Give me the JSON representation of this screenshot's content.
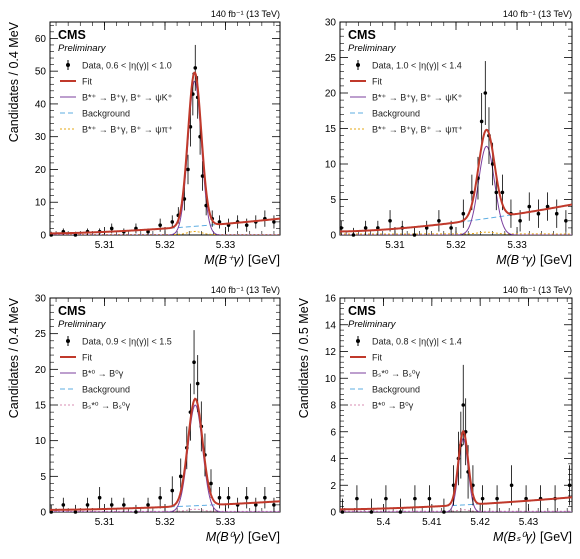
{
  "figure": {
    "lumi_label": "140 fb⁻¹ (13 TeV)"
  },
  "chart_data": [
    {
      "type": "line",
      "experiment": "CMS",
      "status": "Preliminary",
      "xlabel_main": "M(B⁺γ)",
      "xlabel_unit": "[GeV]",
      "ylabel": "Candidates / 0.4 MeV",
      "xlim": [
        5.301,
        5.339
      ],
      "ylim": [
        0,
        65
      ],
      "xticks": [
        5.31,
        5.32,
        5.33
      ],
      "yticks": [
        0,
        10,
        20,
        30,
        40,
        50,
        60
      ],
      "grid": false,
      "legend_position": "top-left",
      "legend": [
        {
          "label": "Data, 0.6 < |η(γ)| < 1.0",
          "kind": "data",
          "color": "#000000"
        },
        {
          "label": "Fit",
          "kind": "line",
          "color": "#c0392b"
        },
        {
          "label": "B*⁺ → B⁺γ, B⁺ → ψK⁺",
          "kind": "line",
          "color": "#7b3f9e"
        },
        {
          "label": "Background",
          "kind": "dashed",
          "color": "#5dade2"
        },
        {
          "label": "B*⁺ → B⁺γ, B⁺ → ψπ⁺",
          "kind": "dotted",
          "color": "#e6a817"
        }
      ],
      "fit": {
        "peak": 5.3249,
        "sigma": 0.0011,
        "amplitude": 47,
        "bkg_start": 0.5,
        "bkg_end": 5
      },
      "data_points": {
        "x": [
          5.3012,
          5.3032,
          5.3052,
          5.3072,
          5.3092,
          5.3112,
          5.3132,
          5.3152,
          5.3172,
          5.3192,
          5.3212,
          5.3222,
          5.3232,
          5.3238,
          5.3242,
          5.3246,
          5.325,
          5.3254,
          5.3258,
          5.3262,
          5.3268,
          5.3278,
          5.329,
          5.3305,
          5.332,
          5.3335,
          5.335,
          5.3365,
          5.338
        ],
        "y": [
          0,
          1,
          0,
          1,
          1,
          2,
          1,
          2,
          1,
          3,
          4,
          6,
          11,
          20,
          33,
          43,
          51,
          42,
          30,
          18,
          9,
          5,
          4,
          3,
          4,
          3,
          4,
          5,
          4
        ],
        "yerr": [
          1,
          1,
          1,
          1,
          1,
          1.5,
          1,
          1.5,
          1,
          2,
          2,
          2.5,
          3.5,
          4.5,
          6,
          6.5,
          7,
          6.5,
          5.5,
          4.5,
          3,
          2.5,
          2,
          2,
          2,
          2,
          2,
          2.5,
          2
        ]
      }
    },
    {
      "type": "line",
      "experiment": "CMS",
      "status": "Preliminary",
      "xlabel_main": "M(B⁺γ)",
      "xlabel_unit": "[GeV]",
      "ylabel": "",
      "xlim": [
        5.301,
        5.339
      ],
      "ylim": [
        0,
        30
      ],
      "xticks": [
        5.31,
        5.32,
        5.33
      ],
      "yticks": [
        0,
        5,
        10,
        15,
        20,
        25,
        30
      ],
      "grid": false,
      "legend_position": "top-left",
      "legend": [
        {
          "label": "Data, 1.0 < |η(γ)| < 1.4",
          "kind": "data",
          "color": "#000000"
        },
        {
          "label": "Fit",
          "kind": "line",
          "color": "#c0392b"
        },
        {
          "label": "B*⁺ → B⁺γ, B⁺ → ψK⁺",
          "kind": "line",
          "color": "#7b3f9e"
        },
        {
          "label": "Background",
          "kind": "dashed",
          "color": "#5dade2"
        },
        {
          "label": "B*⁺ → B⁺γ, B⁺ → ψπ⁺",
          "kind": "dotted",
          "color": "#e6a817"
        }
      ],
      "fit": {
        "peak": 5.325,
        "sigma": 0.0013,
        "amplitude": 12.5,
        "bkg_start": 0.5,
        "bkg_end": 4.3
      },
      "data_points": {
        "x": [
          5.3012,
          5.3032,
          5.3052,
          5.3072,
          5.3092,
          5.3112,
          5.3132,
          5.3152,
          5.3172,
          5.3192,
          5.3212,
          5.3226,
          5.3236,
          5.3242,
          5.3248,
          5.3254,
          5.326,
          5.3266,
          5.3276,
          5.329,
          5.3305,
          5.332,
          5.3335,
          5.335,
          5.3365,
          5.338
        ],
        "y": [
          1,
          0,
          1,
          1,
          2,
          1,
          0,
          1,
          2,
          1,
          3,
          6,
          8,
          16,
          20,
          14,
          10,
          6,
          6,
          3,
          2,
          4,
          3,
          4,
          3,
          2
        ],
        "yerr": [
          1,
          1,
          1,
          1,
          1.5,
          1,
          1,
          1,
          1.5,
          1,
          2,
          2.5,
          3,
          4,
          4.5,
          4,
          3,
          2.5,
          2.5,
          2,
          1.5,
          2,
          2,
          2,
          2,
          1.5
        ]
      }
    },
    {
      "type": "line",
      "experiment": "CMS",
      "status": "Preliminary",
      "xlabel_main": "M(B⁰γ)",
      "xlabel_unit": "[GeV]",
      "ylabel": "Candidates / 0.4 MeV",
      "xlim": [
        5.301,
        5.339
      ],
      "ylim": [
        0,
        30
      ],
      "xticks": [
        5.31,
        5.32,
        5.33
      ],
      "yticks": [
        0,
        5,
        10,
        15,
        20,
        25,
        30
      ],
      "grid": false,
      "legend_position": "top-left",
      "legend": [
        {
          "label": "Data, 0.9 < |η(γ)| < 1.5",
          "kind": "data",
          "color": "#000000"
        },
        {
          "label": "Fit",
          "kind": "line",
          "color": "#c0392b"
        },
        {
          "label": "B*⁰ → B⁰γ",
          "kind": "line",
          "color": "#7b3f9e"
        },
        {
          "label": "Background",
          "kind": "dashed",
          "color": "#5dade2"
        },
        {
          "label": "Bₛ*⁰ → Bₛ⁰γ",
          "kind": "dotted",
          "color": "#d98cb3"
        }
      ],
      "fit": {
        "peak": 5.325,
        "sigma": 0.0012,
        "amplitude": 15,
        "bkg_start": 0.3,
        "bkg_end": 1.5
      },
      "data_points": {
        "x": [
          5.3012,
          5.3032,
          5.3052,
          5.3072,
          5.3092,
          5.3112,
          5.3132,
          5.3152,
          5.3172,
          5.3192,
          5.3212,
          5.3226,
          5.3236,
          5.3242,
          5.3248,
          5.3254,
          5.326,
          5.3266,
          5.3276,
          5.329,
          5.3305,
          5.332,
          5.3335,
          5.335,
          5.3365,
          5.338
        ],
        "y": [
          0,
          1,
          0,
          1,
          2,
          1,
          1,
          0,
          1,
          2,
          3,
          5,
          9,
          14,
          21,
          18,
          12,
          8,
          4,
          2,
          2,
          1,
          2,
          1,
          2,
          1
        ],
        "yerr": [
          1,
          1,
          1,
          1,
          1.5,
          1,
          1,
          1,
          1,
          1.5,
          2,
          2.5,
          3,
          4,
          4.5,
          4,
          3.5,
          3,
          2,
          1.5,
          1.5,
          1,
          1.5,
          1,
          1.5,
          1
        ]
      }
    },
    {
      "type": "line",
      "experiment": "CMS",
      "status": "Preliminary",
      "xlabel_main": "M(Bₛ⁰γ)",
      "xlabel_unit": "[GeV]",
      "ylabel": "Candidates / 0.5 MeV",
      "xlim": [
        5.391,
        5.439
      ],
      "ylim": [
        0,
        16
      ],
      "xticks": [
        5.4,
        5.41,
        5.42,
        5.43
      ],
      "xtick_labels": [
        "5.4",
        "5.41",
        "5.42",
        "5.43"
      ],
      "yticks": [
        0,
        2,
        4,
        6,
        8,
        10,
        12,
        14,
        16
      ],
      "grid": false,
      "legend_position": "top-left",
      "legend": [
        {
          "label": "Data, 0.8 < |η(γ)| < 1.4",
          "kind": "data",
          "color": "#000000"
        },
        {
          "label": "Fit",
          "kind": "line",
          "color": "#c0392b"
        },
        {
          "label": "Bₛ*⁰ → Bₛ⁰γ",
          "kind": "line",
          "color": "#7b3f9e"
        },
        {
          "label": "Background",
          "kind": "dashed",
          "color": "#5dade2"
        },
        {
          "label": "B*⁰ → B⁰γ",
          "kind": "dotted",
          "color": "#d98cb3"
        }
      ],
      "fit": {
        "peak": 5.4165,
        "sigma": 0.001,
        "amplitude": 5.5,
        "bkg_start": 0.2,
        "bkg_end": 1.1
      },
      "data_points": {
        "x": [
          5.3915,
          5.3945,
          5.3975,
          5.4005,
          5.4035,
          5.4065,
          5.4095,
          5.4125,
          5.4145,
          5.4155,
          5.416,
          5.4165,
          5.417,
          5.4175,
          5.4185,
          5.4205,
          5.4235,
          5.4265,
          5.4295,
          5.4325,
          5.4355,
          5.4385
        ],
        "y": [
          0,
          1,
          0,
          1,
          0,
          1,
          1,
          0,
          2,
          4,
          5,
          8,
          6,
          3,
          2,
          1,
          1,
          2,
          1,
          1,
          1,
          2
        ],
        "yerr": [
          1,
          1,
          1,
          1,
          1,
          1,
          1,
          1,
          1.5,
          2,
          2.5,
          3,
          2.5,
          2,
          1.5,
          1,
          1,
          1.5,
          1,
          1,
          1,
          1.5
        ]
      }
    }
  ]
}
